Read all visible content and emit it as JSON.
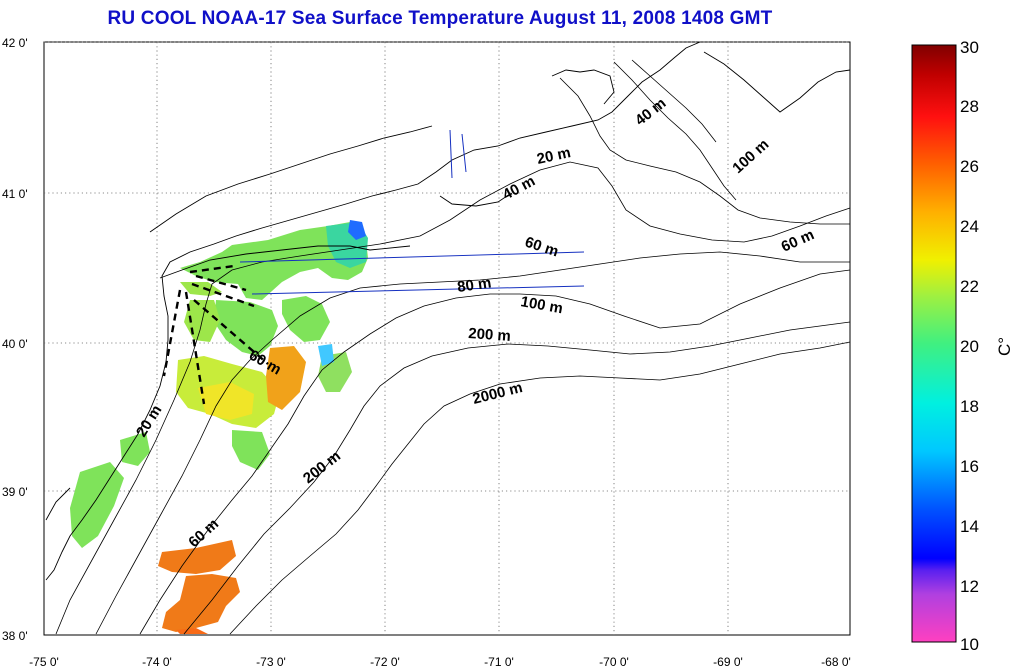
{
  "title": "RU COOL  NOAA-17 Sea Surface Temperature August 11, 2008 1408 GMT",
  "lat_ticks": [
    "42 0'",
    "41 0'",
    "40 0'",
    "39 0'",
    "38 0'"
  ],
  "lon_ticks": [
    "-75 0'",
    "-74 0'",
    "-73 0'",
    "-72 0'",
    "-71 0'",
    "-70 0'",
    "-69 0'",
    "-68 0'"
  ],
  "contour_labels": {
    "c20m_ne": "20 m",
    "c40m_mid": "40 m",
    "c40m_ne": "40 m",
    "c100m_ne": "100 m",
    "c60m_mid": "60 m",
    "c60m_east": "60 m",
    "c80m": "80 m",
    "c100m": "100 m",
    "c200m": "200 m",
    "c2000m": "2000 m",
    "c60m_shelf": "60 m",
    "c20m_nj": "20 m",
    "c200m_south": "200 m",
    "c60m_south": "60 m"
  },
  "colorbar": {
    "min": 10,
    "max": 30,
    "ticks": [
      "30",
      "28",
      "26",
      "24",
      "22",
      "20",
      "18",
      "16",
      "14",
      "12",
      "10"
    ],
    "unit": "C°"
  },
  "colors": {
    "title": "#1010c8",
    "land": "#ffffff",
    "coast": "#000000",
    "transect": "#1530c0"
  }
}
